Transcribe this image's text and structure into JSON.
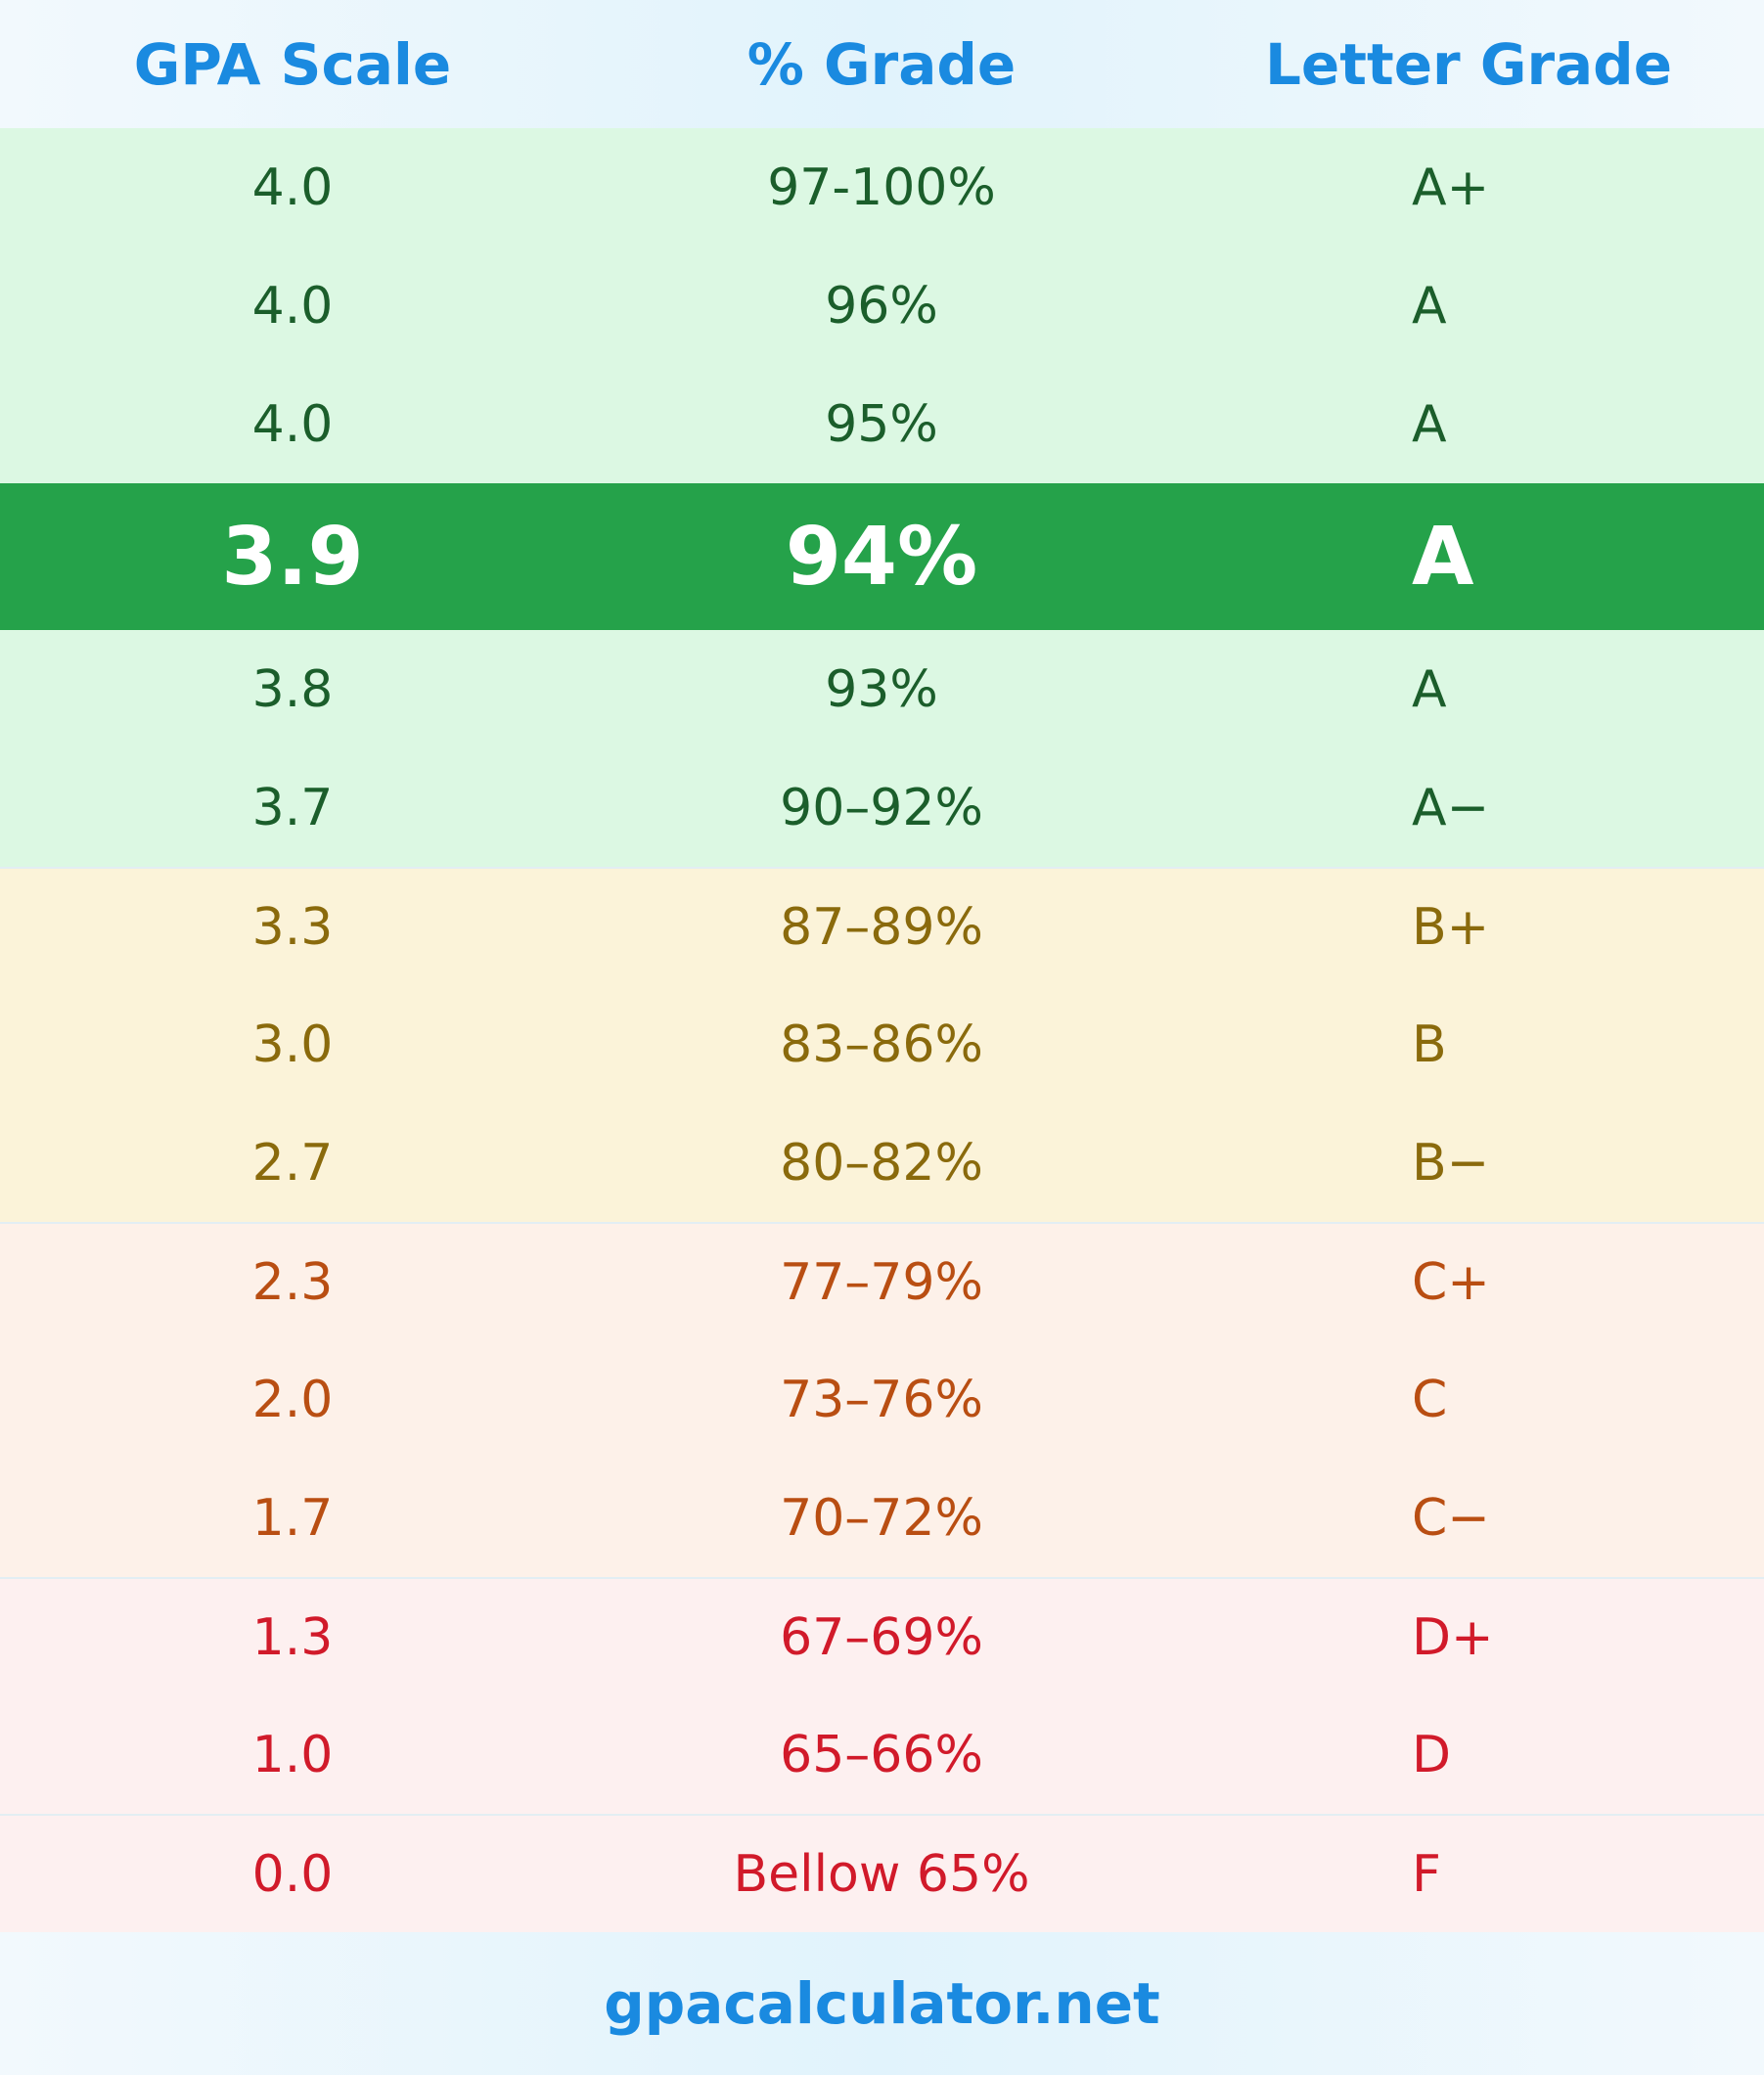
{
  "table": {
    "header": [
      "GPA Scale",
      "% Grade",
      "Letter Grade"
    ],
    "rows": [
      [
        "4.0",
        "97-100%",
        "A+"
      ],
      [
        "4.0",
        "96%",
        "A"
      ],
      [
        "4.0",
        "95%",
        "A"
      ],
      [
        "3.9",
        "94%",
        "A"
      ],
      [
        "3.8",
        "93%",
        "A"
      ],
      [
        "3.7",
        "90–92%",
        "A−"
      ],
      [
        "3.3",
        "87–89%",
        "B+"
      ],
      [
        "3.0",
        "83–86%",
        "B"
      ],
      [
        "2.7",
        "80–82%",
        "B−"
      ],
      [
        "2.3",
        "77–79%",
        "C+"
      ],
      [
        "2.0",
        "73–76%",
        "C"
      ],
      [
        "1.7",
        "70–72%",
        "C−"
      ],
      [
        "1.3",
        "67–69%",
        "D+"
      ],
      [
        "1.0",
        "65–66%",
        "D"
      ],
      [
        "0.0",
        "Bellow 65%",
        "F"
      ]
    ]
  },
  "footer": {
    "site": "gpacalculator.net"
  }
}
